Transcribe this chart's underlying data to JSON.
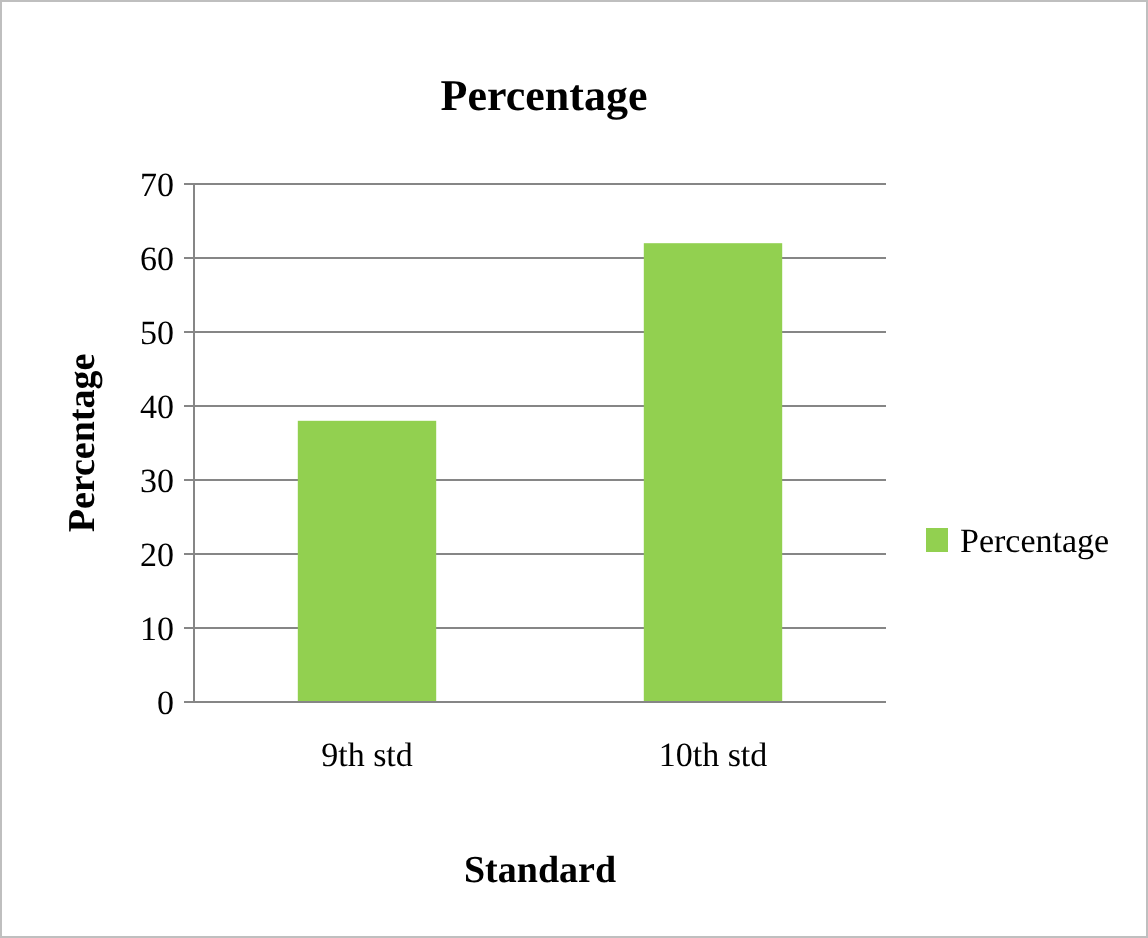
{
  "chart_data": {
    "type": "bar",
    "title": "Percentage",
    "xlabel": "Standard",
    "ylabel": "Percentage",
    "categories": [
      "9th std",
      "10th std"
    ],
    "series": [
      {
        "name": "Percentage",
        "color": "#92d050",
        "values": [
          38,
          62
        ]
      }
    ],
    "ylim": [
      0,
      70
    ],
    "yticks": [
      0,
      10,
      20,
      30,
      40,
      50,
      60,
      70
    ],
    "grid": "y",
    "legend": "right"
  }
}
